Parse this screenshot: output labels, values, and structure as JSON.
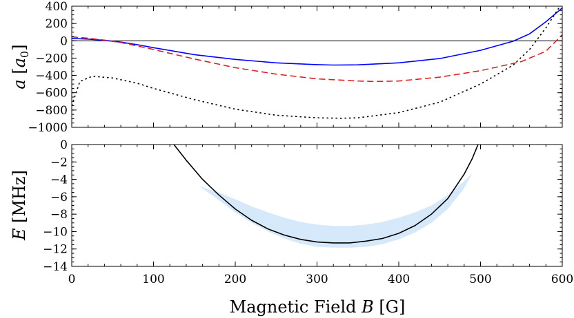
{
  "chart_data": [
    {
      "type": "line",
      "ylabel_var": "a",
      "ylabel_unit": "a",
      "ylabel_sub": "0",
      "xlim": [
        0,
        600
      ],
      "ylim": [
        -1000,
        400
      ],
      "xticks": [
        0,
        100,
        200,
        300,
        400,
        500,
        600
      ],
      "yticks": [
        -1000,
        -800,
        -600,
        -400,
        -200,
        0,
        200,
        400
      ],
      "ytick_labels": [
        "−1000",
        "−800",
        "−600",
        "−400",
        "−200",
        "0",
        "200",
        "400"
      ],
      "reference_line": 0,
      "series": [
        {
          "style": "solid",
          "color": "#0000ff",
          "x": [
            0,
            20,
            40,
            60,
            80,
            100,
            150,
            200,
            250,
            300,
            320,
            350,
            400,
            450,
            500,
            540,
            560,
            580,
            600
          ],
          "y": [
            28,
            20,
            5,
            -15,
            -45,
            -80,
            -160,
            -215,
            -255,
            -275,
            -280,
            -278,
            -255,
            -205,
            -110,
            -5,
            80,
            220,
            380
          ]
        },
        {
          "style": "dashed",
          "color": "#e02020",
          "x": [
            0,
            20,
            40,
            60,
            80,
            100,
            150,
            200,
            250,
            300,
            350,
            370,
            400,
            450,
            500,
            550,
            580,
            600
          ],
          "y": [
            45,
            30,
            8,
            -20,
            -60,
            -100,
            -210,
            -310,
            -385,
            -440,
            -465,
            -470,
            -465,
            -420,
            -345,
            -240,
            -120,
            70
          ]
        },
        {
          "style": "dotted",
          "color": "#000000",
          "x": [
            0,
            10,
            25,
            50,
            80,
            100,
            150,
            200,
            250,
            300,
            330,
            350,
            400,
            450,
            500,
            540,
            560,
            580,
            600
          ],
          "y": [
            -750,
            -470,
            -410,
            -430,
            -490,
            -550,
            -680,
            -790,
            -860,
            -890,
            -895,
            -890,
            -830,
            -710,
            -500,
            -280,
            -100,
            150,
            440
          ]
        }
      ]
    },
    {
      "type": "line",
      "ylabel_var": "E",
      "ylabel_unit": "MHz",
      "xlabel_prefix": "Magnetic Field",
      "xlabel_var": "B",
      "xlabel_unit": "G",
      "xlim": [
        0,
        600
      ],
      "ylim": [
        -14,
        0
      ],
      "xticks": [
        0,
        100,
        200,
        300,
        400,
        500,
        600
      ],
      "yticks": [
        -14,
        -12,
        -10,
        -8,
        -6,
        -4,
        -2,
        0
      ],
      "ytick_labels": [
        "−14",
        "−12",
        "−10",
        "−8",
        "−6",
        "−4",
        "−2",
        "0"
      ],
      "series": [
        {
          "style": "solid",
          "color": "#000000",
          "x": [
            125,
            140,
            160,
            180,
            200,
            220,
            240,
            260,
            280,
            300,
            320,
            340,
            360,
            380,
            400,
            420,
            440,
            460,
            480,
            490,
            497
          ],
          "y": [
            0,
            -1.8,
            -4.0,
            -5.8,
            -7.4,
            -8.7,
            -9.7,
            -10.4,
            -10.9,
            -11.2,
            -11.3,
            -11.3,
            -11.1,
            -10.8,
            -10.2,
            -9.3,
            -8.0,
            -6.2,
            -3.4,
            -1.6,
            0
          ]
        },
        {
          "type": "band",
          "color": "#d6e9fb",
          "x": [
            156,
            180,
            200,
            220,
            240,
            260,
            280,
            300,
            320,
            340,
            360,
            380,
            400,
            420,
            440,
            460,
            480,
            490
          ],
          "upper": [
            -4.8,
            -5.5,
            -6.3,
            -7.1,
            -7.8,
            -8.4,
            -8.9,
            -9.2,
            -9.35,
            -9.35,
            -9.2,
            -8.9,
            -8.4,
            -7.8,
            -7.0,
            -5.8,
            -4.2,
            -3.3
          ],
          "lower": [
            -4.8,
            -6.4,
            -7.8,
            -9.0,
            -10.0,
            -10.8,
            -11.4,
            -11.75,
            -11.85,
            -11.85,
            -11.75,
            -11.45,
            -10.9,
            -10.1,
            -9.0,
            -7.4,
            -5.0,
            -3.3
          ]
        }
      ]
    }
  ]
}
